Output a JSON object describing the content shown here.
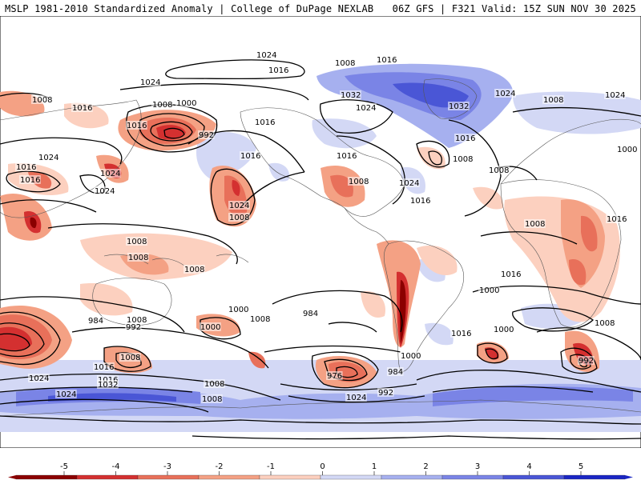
{
  "header": {
    "left": "MSLP 1981-2010 Standardized Anomaly | College of DuPage NEXLAB",
    "right": "06Z GFS | F321 Valid: 15Z SUN NOV 30 2025"
  },
  "colorbar": {
    "ticks": [
      "-5",
      "-4",
      "-3",
      "-2",
      "-1",
      "0",
      "1",
      "2",
      "3",
      "4",
      "5"
    ],
    "colors": [
      "#8b0000",
      "#d43030",
      "#e8705a",
      "#f4a184",
      "#fcd0bf",
      "#ffffff",
      "#d3d8f5",
      "#a6b0ef",
      "#7a84e6",
      "#4a56d6",
      "#1a26c4"
    ]
  },
  "isobar_labels": [
    "1024",
    "1016",
    "1024",
    "1008",
    "1016",
    "1008",
    "1000",
    "1016",
    "992",
    "1024",
    "1016",
    "1024",
    "1016",
    "1024",
    "1016",
    "1024",
    "1008",
    "1016",
    "1032",
    "1024",
    "1032",
    "1024",
    "1008",
    "1024",
    "1016",
    "1016",
    "1008",
    "1016",
    "1008",
    "1024",
    "1016",
    "1008",
    "1008",
    "1008",
    "1008",
    "1008",
    "1016",
    "1008",
    "1016",
    "1000",
    "1000",
    "984",
    "984",
    "992",
    "1000",
    "1008",
    "1008",
    "1000",
    "976",
    "984",
    "992",
    "1000",
    "1016",
    "1000",
    "992",
    "1024",
    "1008",
    "1016",
    "1008",
    "1024",
    "1032",
    "1016",
    "1008",
    "1024",
    "1008"
  ]
}
